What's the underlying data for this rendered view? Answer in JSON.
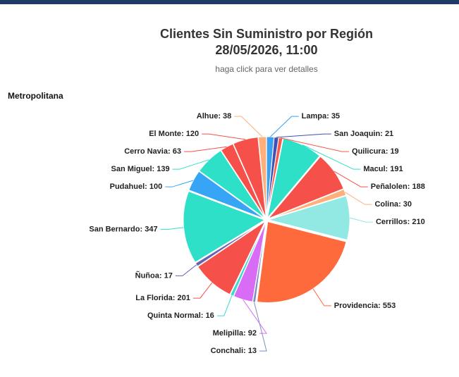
{
  "chart_data": {
    "type": "pie",
    "title": "Clientes Sin Suministro por Región",
    "date": "28/05/2026, 11:00",
    "subtitle": "haga click para ver detalles",
    "region": "Metropolitana",
    "categories": [
      "Lampa",
      "San Joaquin",
      "Quilicura",
      "Macul",
      "Peñalolen",
      "Colina",
      "Cerrillos",
      "Providencia",
      "Conchali",
      "Melipilla",
      "Quinta Normal",
      "La Florida",
      "Ñuñoa",
      "San Bernardo",
      "Pudahuel",
      "San Miguel",
      "Cerro Navia",
      "El Monte",
      "Alhue"
    ],
    "values": [
      35,
      21,
      19,
      191,
      188,
      30,
      210,
      553,
      13,
      92,
      16,
      201,
      17,
      347,
      100,
      139,
      63,
      120,
      38
    ],
    "colors": [
      "#3aa0f0",
      "#3f51b5",
      "#f55a4e",
      "#2ee0c8",
      "#f5514a",
      "#ffb07a",
      "#92e8e2",
      "#ff6a3d",
      "#7f8cc0",
      "#d96cf5",
      "#3fd9d0",
      "#f5514a",
      "#6a5fb0",
      "#2ee0c8",
      "#37a5f5",
      "#2ee0c8",
      "#f5514a",
      "#f5514a",
      "#ffb07a"
    ]
  }
}
